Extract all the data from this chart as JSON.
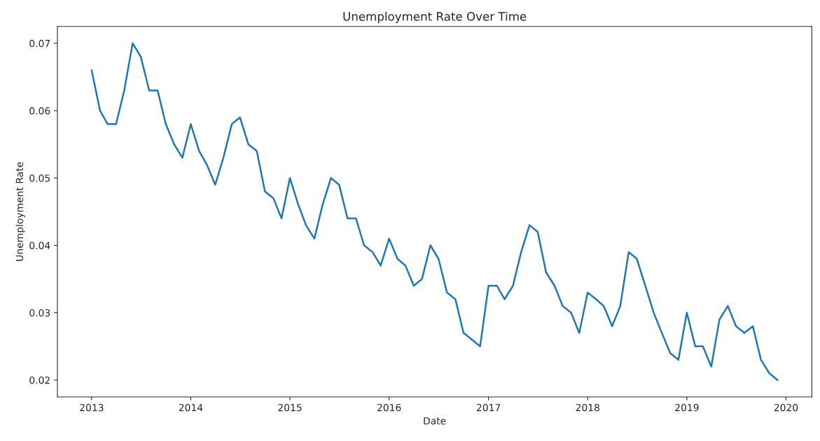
{
  "chart_data": {
    "type": "line",
    "title": "Unemployment Rate Over Time",
    "xlabel": "Date",
    "ylabel": "Unemployment Rate",
    "x": [
      "2013-01",
      "2013-02",
      "2013-03",
      "2013-04",
      "2013-05",
      "2013-06",
      "2013-07",
      "2013-08",
      "2013-09",
      "2013-10",
      "2013-11",
      "2013-12",
      "2014-01",
      "2014-02",
      "2014-03",
      "2014-04",
      "2014-05",
      "2014-06",
      "2014-07",
      "2014-08",
      "2014-09",
      "2014-10",
      "2014-11",
      "2014-12",
      "2015-01",
      "2015-02",
      "2015-03",
      "2015-04",
      "2015-05",
      "2015-06",
      "2015-07",
      "2015-08",
      "2015-09",
      "2015-10",
      "2015-11",
      "2015-12",
      "2016-01",
      "2016-02",
      "2016-03",
      "2016-04",
      "2016-05",
      "2016-06",
      "2016-07",
      "2016-08",
      "2016-09",
      "2016-10",
      "2016-11",
      "2016-12",
      "2017-01",
      "2017-02",
      "2017-03",
      "2017-04",
      "2017-05",
      "2017-06",
      "2017-07",
      "2017-08",
      "2017-09",
      "2017-10",
      "2017-11",
      "2017-12",
      "2018-01",
      "2018-02",
      "2018-03",
      "2018-04",
      "2018-05",
      "2018-06",
      "2018-07",
      "2018-08",
      "2018-09",
      "2018-10",
      "2018-11",
      "2018-12",
      "2019-01",
      "2019-02",
      "2019-03",
      "2019-04",
      "2019-05",
      "2019-06",
      "2019-07",
      "2019-08",
      "2019-09",
      "2019-10",
      "2019-11",
      "2019-12"
    ],
    "series": [
      {
        "color": "#1f77b4",
        "values": [
          0.066,
          0.06,
          0.058,
          0.058,
          0.063,
          0.07,
          0.068,
          0.063,
          0.063,
          0.058,
          0.055,
          0.053,
          0.058,
          0.054,
          0.052,
          0.049,
          0.053,
          0.058,
          0.059,
          0.055,
          0.054,
          0.048,
          0.047,
          0.044,
          0.05,
          0.046,
          0.043,
          0.041,
          0.046,
          0.05,
          0.049,
          0.044,
          0.044,
          0.04,
          0.039,
          0.037,
          0.041,
          0.038,
          0.037,
          0.034,
          0.035,
          0.04,
          0.038,
          0.033,
          0.032,
          0.027,
          0.026,
          0.025,
          0.034,
          0.034,
          0.032,
          0.034,
          0.039,
          0.043,
          0.042,
          0.036,
          0.034,
          0.031,
          0.03,
          0.027,
          0.033,
          0.032,
          0.031,
          0.028,
          0.031,
          0.039,
          0.038,
          0.034,
          0.03,
          0.027,
          0.024,
          0.023,
          0.03,
          0.025,
          0.025,
          0.022,
          0.029,
          0.031,
          0.028,
          0.027,
          0.028,
          0.023,
          0.021,
          0.02
        ]
      }
    ],
    "xlim": [
      "2012-08-28",
      "2020-04-05"
    ],
    "xticks": [
      "2013",
      "2014",
      "2015",
      "2016",
      "2017",
      "2018",
      "2019",
      "2020"
    ],
    "ylim": [
      0.0175,
      0.0725
    ],
    "yticks": [
      0.02,
      0.03,
      0.04,
      0.05,
      0.06,
      0.07
    ],
    "grid": false,
    "marker": "none",
    "line_style": "solid"
  }
}
